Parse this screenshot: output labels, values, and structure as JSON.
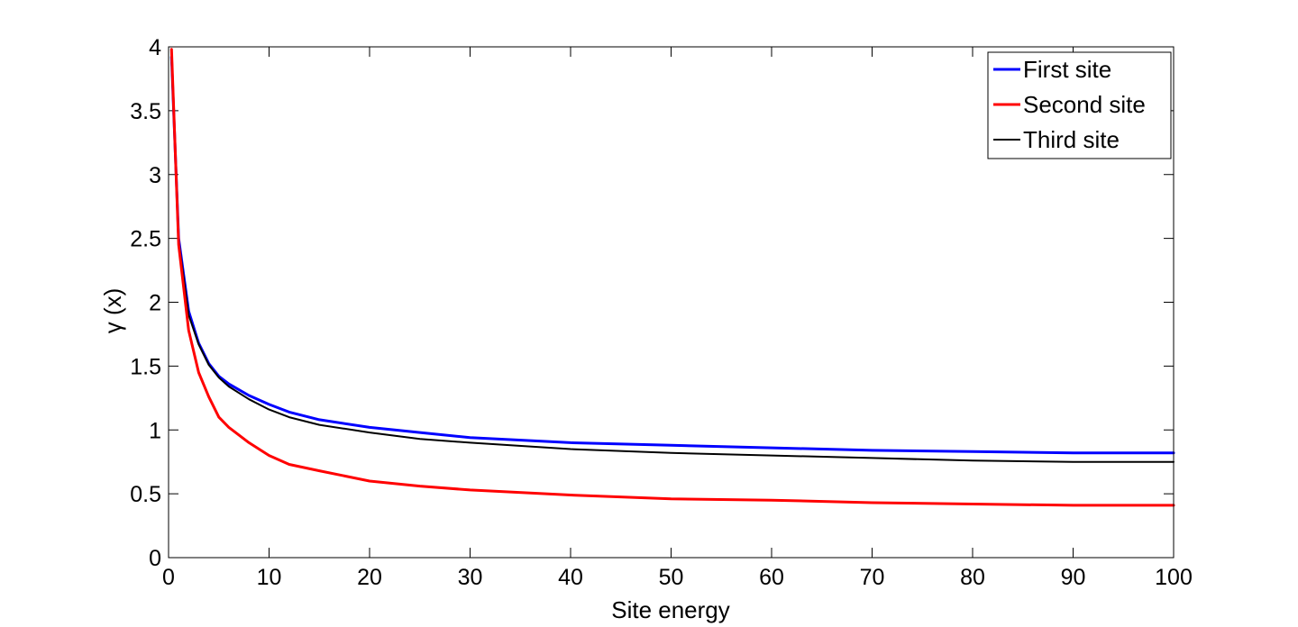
{
  "chart_data": {
    "type": "line",
    "xlabel": "Site energy",
    "ylabel": "γ (x)",
    "xlim": [
      0,
      100
    ],
    "ylim": [
      0,
      4
    ],
    "xticks": [
      "0",
      "10",
      "20",
      "30",
      "40",
      "50",
      "60",
      "70",
      "80",
      "90",
      "100"
    ],
    "yticks": [
      "0",
      "0.5",
      "1",
      "1.5",
      "2",
      "2.5",
      "3",
      "3.5",
      "4"
    ],
    "grid": false,
    "legend_position": "top-right",
    "x": [
      0.3,
      1,
      2,
      3,
      4,
      5,
      6,
      8,
      10,
      12,
      15,
      20,
      25,
      30,
      40,
      50,
      60,
      70,
      80,
      90,
      100
    ],
    "series": [
      {
        "name": "First site",
        "color": "#0000ff",
        "values": [
          3.92,
          2.5,
          1.93,
          1.68,
          1.52,
          1.42,
          1.36,
          1.27,
          1.2,
          1.14,
          1.08,
          1.02,
          0.98,
          0.94,
          0.9,
          0.88,
          0.86,
          0.84,
          0.83,
          0.82,
          0.82
        ]
      },
      {
        "name": "Second site",
        "color": "#ff0000",
        "values": [
          3.98,
          2.45,
          1.78,
          1.45,
          1.26,
          1.1,
          1.02,
          0.9,
          0.8,
          0.73,
          0.68,
          0.6,
          0.56,
          0.53,
          0.49,
          0.46,
          0.45,
          0.43,
          0.42,
          0.41,
          0.41
        ]
      },
      {
        "name": "Third site",
        "color": "#000000",
        "values": [
          3.88,
          2.48,
          1.9,
          1.67,
          1.51,
          1.41,
          1.34,
          1.24,
          1.16,
          1.1,
          1.04,
          0.98,
          0.93,
          0.9,
          0.85,
          0.82,
          0.8,
          0.78,
          0.76,
          0.75,
          0.75
        ]
      }
    ]
  }
}
